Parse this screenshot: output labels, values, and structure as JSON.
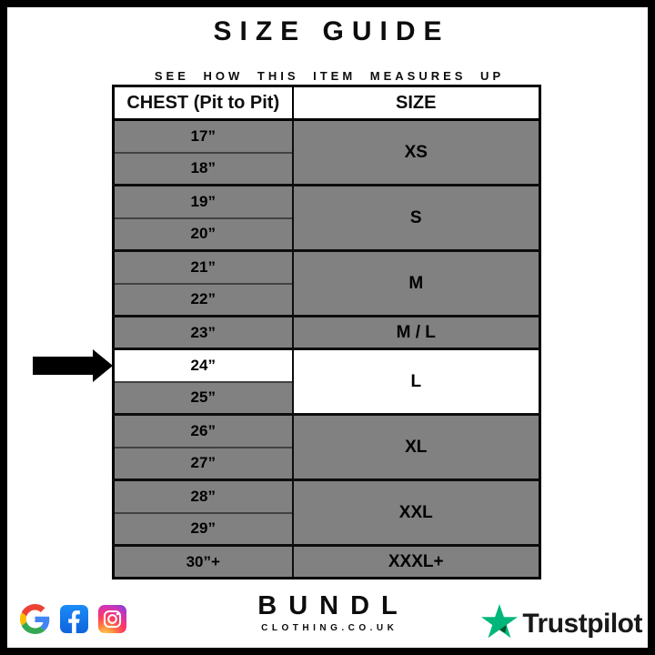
{
  "page": {
    "title": "SIZE GUIDE",
    "subtitle": "SEE HOW THIS ITEM MEASURES UP"
  },
  "table": {
    "columns": [
      "CHEST (Pit to Pit)",
      "SIZE"
    ],
    "groups": [
      {
        "size": "XS",
        "chest": [
          "17”",
          "18”"
        ],
        "highlighted": false
      },
      {
        "size": "S",
        "chest": [
          "19”",
          "20”"
        ],
        "highlighted": false
      },
      {
        "size": "M",
        "chest": [
          "21”",
          "22”"
        ],
        "highlighted": false
      },
      {
        "size": "M / L",
        "chest": [
          "23”"
        ],
        "highlighted": false
      },
      {
        "size": "L",
        "chest": [
          "24”",
          "25”"
        ],
        "highlighted": true,
        "highlighted_chest": "24”"
      },
      {
        "size": "XL",
        "chest": [
          "26”",
          "27”"
        ],
        "highlighted": false
      },
      {
        "size": "XXL",
        "chest": [
          "28”",
          "29”"
        ],
        "highlighted": false
      },
      {
        "size": "XXXL+",
        "chest": [
          "30”+"
        ],
        "highlighted": false
      }
    ],
    "selection": {
      "chest": "24”",
      "size": "L"
    }
  },
  "footer": {
    "brand": "BUNDL",
    "brand_domain": "CLOTHING.CO.UK",
    "social_icons": [
      "google-icon",
      "facebook-icon",
      "instagram-icon"
    ],
    "trustpilot_label": "Trustpilot"
  },
  "colors": {
    "row_gray": "#818181",
    "highlight_white": "#ffffff",
    "border_black": "#000000",
    "trustpilot_green": "#00b67a",
    "trustpilot_dark_green": "#005128",
    "facebook_blue": "#1877f2",
    "google_red": "#ea4335",
    "google_blue": "#4285f4",
    "google_yellow": "#fbbc05",
    "google_green": "#34a853"
  }
}
